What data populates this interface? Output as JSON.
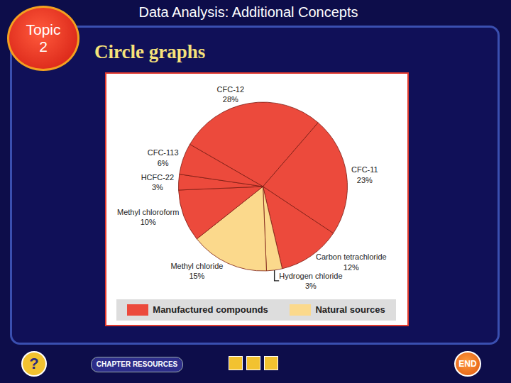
{
  "slide": {
    "topic": [
      "Topic",
      "2"
    ],
    "header": "Data Analysis: Additional Concepts",
    "subtitle": "Circle graphs",
    "help": "?",
    "resources": "CHAPTER RESOURCES",
    "end": "END"
  },
  "chart_data": {
    "type": "pie",
    "categories": [
      "CFC-12",
      "CFC-11",
      "Carbon tetrachloride",
      "Hydrogen chloride",
      "Methyl chloride",
      "Methyl chloroform",
      "HCFC-22",
      "CFC-113"
    ],
    "values": [
      28,
      23,
      12,
      3,
      15,
      10,
      3,
      6
    ],
    "value_labels": [
      "28%",
      "23%",
      "12%",
      "3%",
      "15%",
      "10%",
      "3%",
      "6%"
    ],
    "colors": [
      "#ec4a3c",
      "#ec4a3c",
      "#ec4a3c",
      "#fbd98c",
      "#fbd98c",
      "#ec4a3c",
      "#ec4a3c",
      "#ec4a3c"
    ],
    "data_labels": true,
    "legend": "bottom",
    "groups": [
      {
        "name": "Manufactured compounds",
        "color": "#ec4a3c"
      },
      {
        "name": "Natural sources",
        "color": "#fbd98c"
      }
    ]
  }
}
